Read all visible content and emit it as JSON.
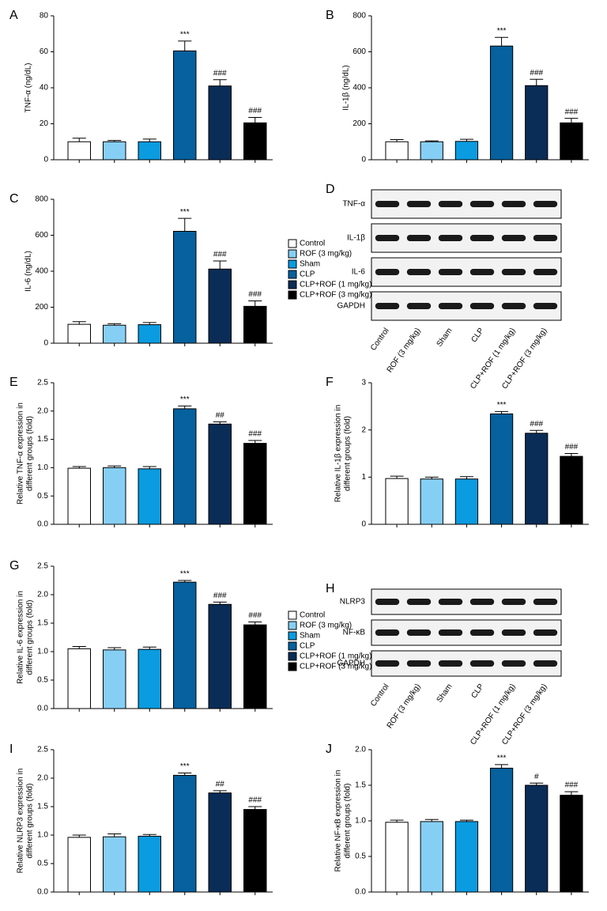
{
  "chart_data": [
    {
      "type": "bar",
      "panel": "A",
      "ylabel": [
        "TNF-α (ng/dL)"
      ],
      "categories": [
        null,
        null,
        null,
        null,
        null,
        null
      ],
      "colors": [
        "#ffffff",
        "#86cff4",
        "#0a9be0",
        "#06619e",
        "#0a2d57",
        "#000000"
      ],
      "values": [
        10,
        10,
        10,
        60.5,
        41,
        20.5
      ],
      "errors": [
        2,
        0.7,
        1.5,
        5.5,
        3.5,
        3
      ],
      "annotations": [
        null,
        null,
        null,
        "***",
        "###",
        "###"
      ],
      "ylim": [
        0,
        80
      ],
      "yticks": [
        0,
        20,
        40,
        60,
        80
      ]
    },
    {
      "type": "bar",
      "panel": "B",
      "ylabel": [
        "IL-1β (ng/dL)"
      ],
      "categories": [
        null,
        null,
        null,
        null,
        null,
        null
      ],
      "colors": [
        "#ffffff",
        "#86cff4",
        "#0a9be0",
        "#06619e",
        "#0a2d57",
        "#000000"
      ],
      "values": [
        100,
        100,
        102,
        632,
        412,
        205
      ],
      "errors": [
        12,
        5,
        12,
        48,
        35,
        25
      ],
      "annotations": [
        null,
        null,
        null,
        "***",
        "###",
        "###"
      ],
      "ylim": [
        0,
        800
      ],
      "yticks": [
        0,
        200,
        400,
        600,
        800
      ]
    },
    {
      "type": "bar",
      "panel": "C",
      "ylabel": [
        "IL-6 (ng/dL)"
      ],
      "categories": [
        null,
        null,
        null,
        null,
        null,
        null
      ],
      "colors": [
        "#ffffff",
        "#86cff4",
        "#0a9be0",
        "#06619e",
        "#0a2d57",
        "#000000"
      ],
      "values": [
        105,
        100,
        103,
        622,
        412,
        205
      ],
      "errors": [
        15,
        8,
        12,
        72,
        45,
        30
      ],
      "annotations": [
        null,
        null,
        null,
        "***",
        "###",
        "###"
      ],
      "ylim": [
        0,
        800
      ],
      "yticks": [
        0,
        200,
        400,
        600,
        800
      ],
      "legend": [
        "Control",
        "ROF (3 mg/kg)",
        "Sham",
        "CLP",
        "CLP+ROF (1 mg/kg)",
        "CLP+ROF (3 mg/kg)"
      ]
    },
    {
      "type": "bar",
      "panel": "E",
      "ylabel": [
        "Relative TNF-α expression in",
        "different groups (fold)"
      ],
      "categories": [
        null,
        null,
        null,
        null,
        null,
        null
      ],
      "colors": [
        "#ffffff",
        "#86cff4",
        "#0a9be0",
        "#06619e",
        "#0a2d57",
        "#000000"
      ],
      "values": [
        0.99,
        1.0,
        0.98,
        2.04,
        1.77,
        1.43
      ],
      "errors": [
        0.03,
        0.03,
        0.04,
        0.05,
        0.04,
        0.05
      ],
      "annotations": [
        null,
        null,
        null,
        "***",
        "##",
        "###"
      ],
      "ylim": [
        0,
        2.5
      ],
      "yticks": [
        {
          "value": 0,
          "label": "0.0"
        },
        0.5,
        {
          "value": 1,
          "label": "1.0"
        },
        1.5,
        {
          "value": 2,
          "label": "2.0"
        },
        2.5
      ]
    },
    {
      "type": "bar",
      "panel": "F",
      "ylabel": [
        "Relative IL-1β expression in",
        "different groups (fold)"
      ],
      "categories": [
        null,
        null,
        null,
        null,
        null,
        null
      ],
      "colors": [
        "#ffffff",
        "#86cff4",
        "#0a9be0",
        "#06619e",
        "#0a2d57",
        "#000000"
      ],
      "values": [
        0.97,
        0.96,
        0.96,
        2.34,
        1.93,
        1.44
      ],
      "errors": [
        0.05,
        0.04,
        0.05,
        0.05,
        0.06,
        0.06
      ],
      "annotations": [
        null,
        null,
        null,
        "***",
        "###",
        "###"
      ],
      "ylim": [
        0,
        3
      ],
      "yticks": [
        0,
        1,
        2,
        3
      ]
    },
    {
      "type": "bar",
      "panel": "G",
      "ylabel": [
        "Relative IL-6 expression in",
        "different groups (fold)"
      ],
      "categories": [
        null,
        null,
        null,
        null,
        null,
        null
      ],
      "colors": [
        "#ffffff",
        "#86cff4",
        "#0a9be0",
        "#06619e",
        "#0a2d57",
        "#000000"
      ],
      "values": [
        1.05,
        1.03,
        1.04,
        2.22,
        1.83,
        1.47
      ],
      "errors": [
        0.04,
        0.04,
        0.04,
        0.03,
        0.04,
        0.05
      ],
      "annotations": [
        null,
        null,
        null,
        "***",
        "###",
        "###"
      ],
      "ylim": [
        0,
        2.5
      ],
      "yticks": [
        {
          "value": 0,
          "label": "0.0"
        },
        0.5,
        {
          "value": 1,
          "label": "1.0"
        },
        1.5,
        {
          "value": 2,
          "label": "2.0"
        },
        2.5
      ],
      "legend": [
        "Control",
        "ROF (3 mg/kg)",
        "Sham",
        "CLP",
        "CLP+ROF (1 mg/kg)",
        "CLP+ROF (3 mg/kg)"
      ]
    },
    {
      "type": "bar",
      "panel": "I",
      "ylabel": [
        "Relative NLRP3 expression in",
        "different groups (fold)"
      ],
      "categories": [
        null,
        null,
        null,
        null,
        null,
        null
      ],
      "colors": [
        "#ffffff",
        "#86cff4",
        "#0a9be0",
        "#06619e",
        "#0a2d57",
        "#000000"
      ],
      "values": [
        0.96,
        0.97,
        0.98,
        2.05,
        1.74,
        1.45
      ],
      "errors": [
        0.04,
        0.05,
        0.03,
        0.04,
        0.04,
        0.05
      ],
      "annotations": [
        null,
        null,
        null,
        "***",
        "##",
        "###"
      ],
      "ylim": [
        0,
        2.5
      ],
      "yticks": [
        {
          "value": 0,
          "label": "0.0"
        },
        0.5,
        {
          "value": 1,
          "label": "1.0"
        },
        1.5,
        {
          "value": 2,
          "label": "2.0"
        },
        2.5
      ]
    },
    {
      "type": "bar",
      "panel": "J",
      "ylabel": [
        "Relative NF-κB expression in",
        "different groups (fold)"
      ],
      "categories": [
        null,
        null,
        null,
        null,
        null,
        null
      ],
      "colors": [
        "#ffffff",
        "#86cff4",
        "#0a9be0",
        "#06619e",
        "#0a2d57",
        "#000000"
      ],
      "values": [
        0.98,
        0.99,
        0.99,
        1.74,
        1.5,
        1.36
      ],
      "errors": [
        0.03,
        0.03,
        0.02,
        0.05,
        0.03,
        0.05
      ],
      "annotations": [
        null,
        null,
        null,
        "***",
        "#",
        "###"
      ],
      "ylim": [
        0,
        2
      ],
      "yticks": [
        {
          "value": 0,
          "label": "0.0"
        },
        0.5,
        {
          "value": 1,
          "label": "1.0"
        },
        1.5,
        {
          "value": 2,
          "label": "2.0"
        }
      ]
    }
  ],
  "blots": [
    {
      "panel": "D",
      "rows": [
        "TNF-α",
        "IL-1β",
        "IL-6",
        "GAPDH"
      ],
      "lanes": [
        "Control",
        "ROF (3 mg/kg)",
        "Sham",
        "CLP",
        "CLP+ROF (1 mg/kg)",
        "CLP+ROF (3 mg/kg)"
      ]
    },
    {
      "panel": "H",
      "rows": [
        "NLRP3",
        "NF-κB",
        "GAPDH"
      ],
      "lanes": [
        "Control",
        "ROF (3 mg/kg)",
        "Sham",
        "CLP",
        "CLP+ROF (1 mg/kg)",
        "CLP+ROF (3 mg/kg)"
      ]
    }
  ]
}
